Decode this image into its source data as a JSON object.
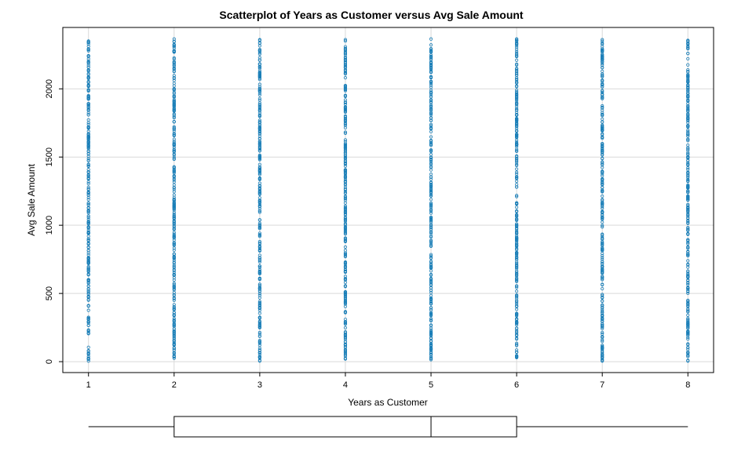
{
  "chart_data": {
    "type": "scatter",
    "title": "Scatterplot of Years as Customer versus Avg Sale Amount",
    "xlabel": "Years as Customer",
    "ylabel": "Avg Sale Amount",
    "x_ticks": [
      1,
      2,
      3,
      4,
      5,
      6,
      7,
      8
    ],
    "y_ticks": [
      0,
      500,
      1000,
      1500,
      2000
    ],
    "xlim": [
      0.7,
      8.3
    ],
    "ylim": [
      -80,
      2450
    ],
    "grid": true,
    "point_color": "#1a7fb8",
    "series": [
      {
        "x_values": [
          1,
          2,
          3,
          4,
          5,
          6,
          7,
          8
        ],
        "y_ranges": [
          [
            5,
            2350
          ],
          [
            25,
            2365
          ],
          [
            5,
            2360
          ],
          [
            20,
            2360
          ],
          [
            15,
            2365
          ],
          [
            30,
            2365
          ],
          [
            5,
            2360
          ],
          [
            5,
            2355
          ]
        ]
      }
    ],
    "boxplot": {
      "min": 1,
      "q1": 2,
      "median": 5,
      "q3": 6,
      "max": 8
    }
  }
}
